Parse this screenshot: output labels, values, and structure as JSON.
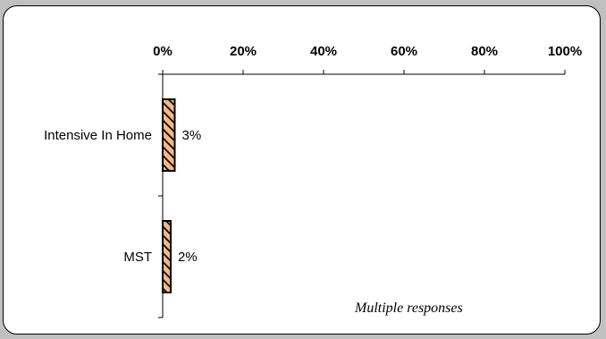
{
  "chart_data": {
    "type": "bar",
    "orientation": "horizontal",
    "categories": [
      "Intensive In Home",
      "MST"
    ],
    "values": [
      3,
      2
    ],
    "data_labels": [
      "3%",
      "2%"
    ],
    "xlim": [
      0,
      100
    ],
    "x_ticks": [
      0,
      20,
      40,
      60,
      80,
      100
    ],
    "x_tick_labels": [
      "0%",
      "20%",
      "40%",
      "60%",
      "80%",
      "100%"
    ],
    "x_axis_position": "top",
    "grid": false,
    "legend": "none",
    "bar_fill": "#f5b784",
    "bar_hatch": "#000000",
    "annotation": "Multiple responses"
  }
}
